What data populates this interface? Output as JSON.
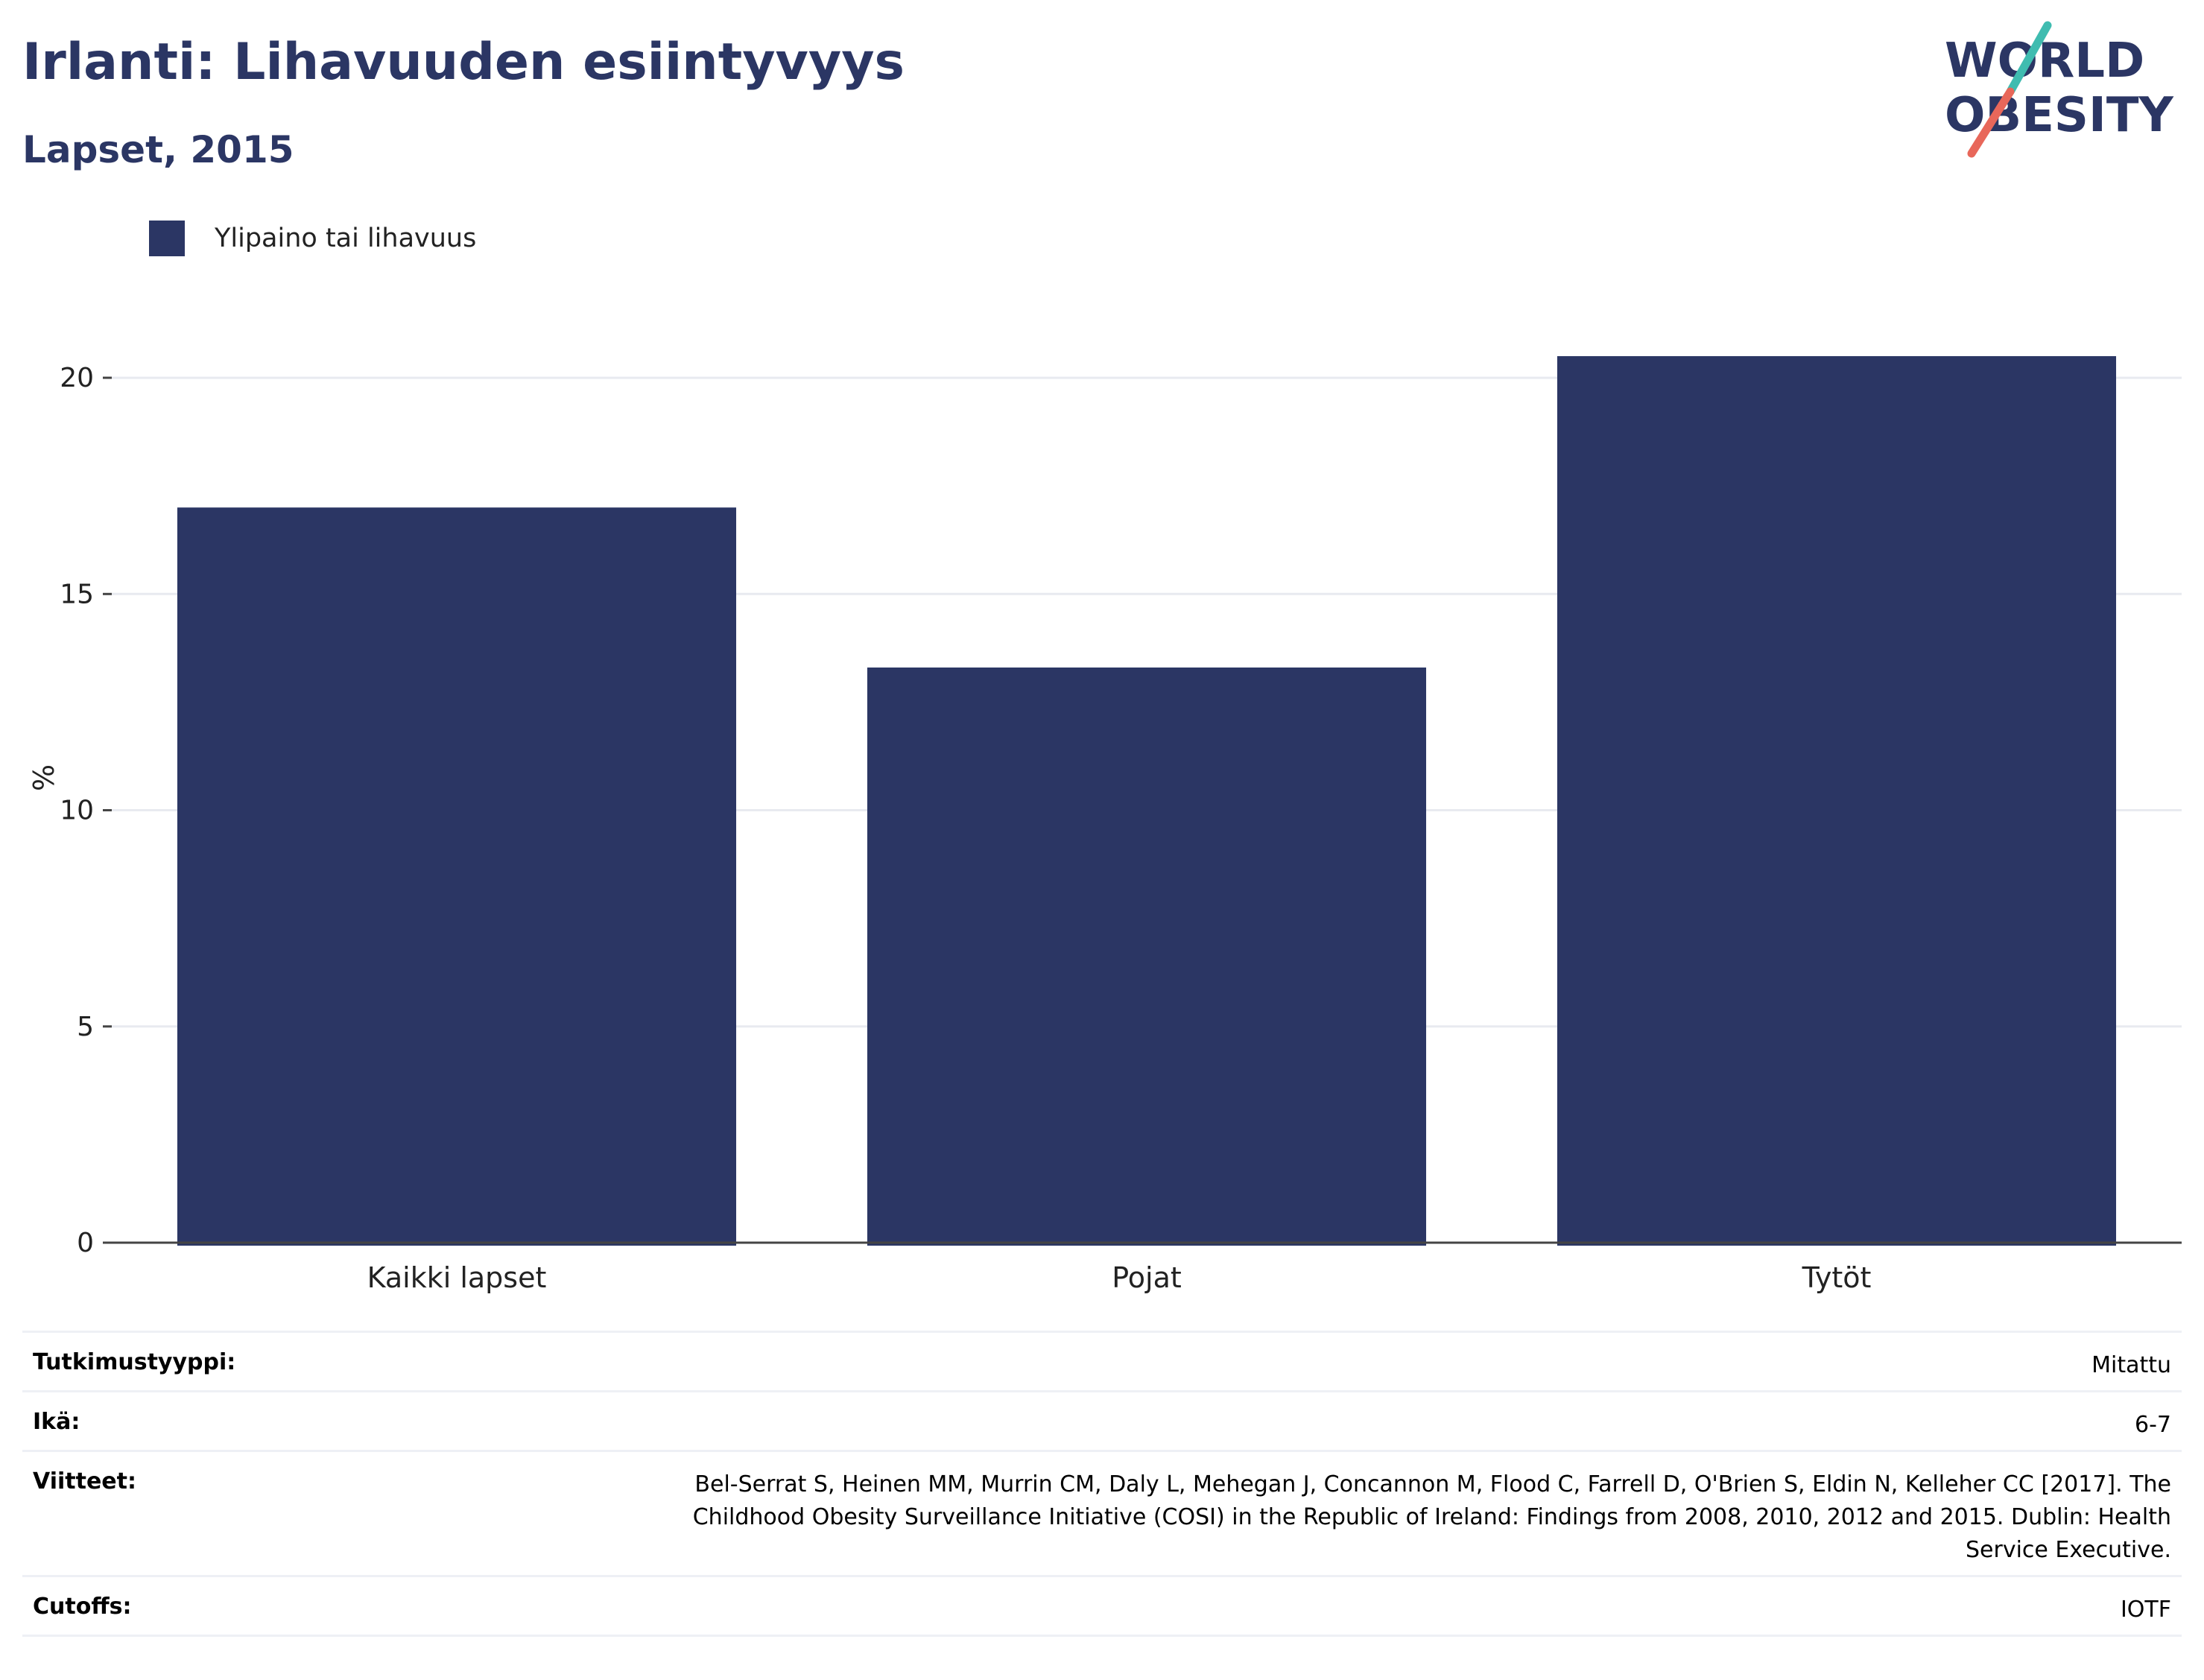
{
  "header": {
    "title": "Irlanti: Lihavuuden esiintyvyys",
    "subtitle": "Lapset, 2015"
  },
  "logo": {
    "line1": "WORLD",
    "line2": "OBESITY"
  },
  "legend": {
    "label": "Ylipaino tai lihavuus"
  },
  "colors": {
    "bar": "#2b3664",
    "title": "#2b3664",
    "grid": "#e8eaf0",
    "logo_teal": "#3fbcb0",
    "logo_coral": "#e8675a"
  },
  "chart_data": {
    "type": "bar",
    "categories": [
      "Kaikki lapset",
      "Pojat",
      "Tytöt"
    ],
    "series": [
      {
        "name": "Ylipaino tai lihavuus",
        "values": [
          17.0,
          13.3,
          20.5
        ]
      }
    ],
    "ylabel": "%",
    "xlabel": "",
    "yticks": [
      0,
      5,
      10,
      15,
      20
    ],
    "ylim": [
      0,
      21.5
    ],
    "grid": true,
    "legend_position": "top-left"
  },
  "info": {
    "study_type": {
      "label": "Tutkimustyyppi:",
      "value": "Mitattu"
    },
    "age": {
      "label": "Ikä:",
      "value": "6-7"
    },
    "references": {
      "label": "Viitteet:",
      "value": "Bel-Serrat S, Heinen MM, Murrin CM, Daly L, Mehegan J, Concannon M, Flood C, Farrell D, O'Brien S, Eldin N, Kelleher CC [2017]. The Childhood Obesity Surveillance Initiative (COSI) in the Republic of Ireland: Findings from 2008, 2010, 2012 and 2015. Dublin: Health Service Executive."
    },
    "cutoffs": {
      "label": "Cutoffs:",
      "value": "IOTF"
    }
  }
}
